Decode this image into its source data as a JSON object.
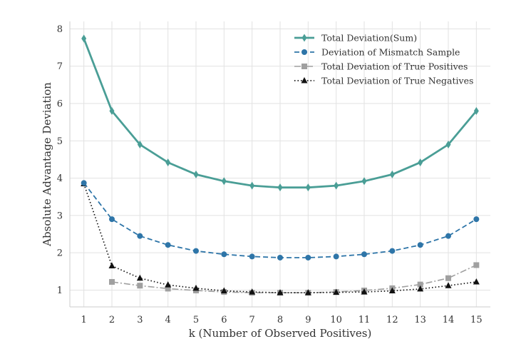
{
  "chart_data": {
    "type": "line",
    "xlabel": "k (Number of Observed Positives)",
    "ylabel": "Absolute Advantage Deviation",
    "xlim": [
      0.5,
      15.5
    ],
    "ylim": [
      0.55,
      8.2
    ],
    "grid": true,
    "legend_position": "top-right",
    "x_ticks": [
      "1",
      "2",
      "3",
      "4",
      "5",
      "6",
      "7",
      "8",
      "9",
      "10",
      "11",
      "12",
      "13",
      "14",
      "15"
    ],
    "y_ticks": [
      "1",
      "2",
      "3",
      "4",
      "5",
      "6",
      "7",
      "8"
    ],
    "series": [
      {
        "name": "Total Deviation(Sum)",
        "color": "#4a9e96",
        "line_style": "solid",
        "marker": "diamond",
        "x": [
          1,
          2,
          3,
          4,
          5,
          6,
          7,
          8,
          9,
          10,
          11,
          12,
          13,
          14,
          15
        ],
        "values": [
          7.74,
          5.8,
          4.9,
          4.42,
          4.1,
          3.92,
          3.8,
          3.75,
          3.75,
          3.8,
          3.92,
          4.1,
          4.42,
          4.9,
          5.8
        ]
      },
      {
        "name": "Deviation of Mismatch Sample",
        "color": "#2e75a8",
        "line_style": "dashed",
        "marker": "circle",
        "x": [
          1,
          2,
          3,
          4,
          5,
          6,
          7,
          8,
          9,
          10,
          11,
          12,
          13,
          14,
          15
        ],
        "values": [
          3.87,
          2.9,
          2.45,
          2.21,
          2.05,
          1.96,
          1.9,
          1.87,
          1.87,
          1.9,
          1.96,
          2.05,
          2.21,
          2.45,
          2.9
        ]
      },
      {
        "name": "Total Deviation of True Positives",
        "color": "#a0a0a0",
        "line_style": "dashdot",
        "marker": "square",
        "x": [
          2,
          3,
          4,
          5,
          6,
          7,
          8,
          9,
          10,
          11,
          12,
          13,
          14,
          15
        ],
        "values": [
          1.22,
          1.12,
          1.04,
          0.99,
          0.95,
          0.93,
          0.93,
          0.93,
          0.95,
          0.99,
          1.05,
          1.15,
          1.32,
          1.67
        ]
      },
      {
        "name": "Total Deviation of True Negatives",
        "color": "#111111",
        "line_style": "dotted",
        "marker": "triangle",
        "x": [
          1,
          2,
          3,
          4,
          5,
          6,
          7,
          8,
          9,
          10,
          11,
          12,
          13,
          14,
          15
        ],
        "values": [
          3.85,
          1.65,
          1.32,
          1.14,
          1.05,
          0.98,
          0.95,
          0.93,
          0.93,
          0.94,
          0.95,
          0.98,
          1.03,
          1.12,
          1.22
        ]
      }
    ]
  }
}
